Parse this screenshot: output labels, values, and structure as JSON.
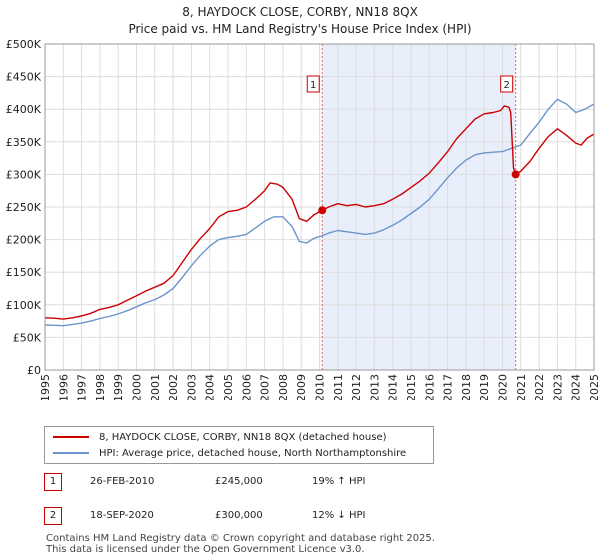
{
  "title": "8, HAYDOCK CLOSE, CORBY, NN18 8QX",
  "subtitle": "Price paid vs. HM Land Registry's House Price Index (HPI)",
  "colors": {
    "property": "#cc0000",
    "hpi": "#6b95cc",
    "shade": "#e8eefa",
    "grid": "#dddddd",
    "vline": "#dd6666"
  },
  "chart_data": {
    "type": "line",
    "x_range": [
      1995,
      2025
    ],
    "ylim": [
      0,
      500000
    ],
    "yticks": [
      0,
      50000,
      100000,
      150000,
      200000,
      250000,
      300000,
      350000,
      400000,
      450000,
      500000
    ],
    "ytick_labels": [
      "£0",
      "£50K",
      "£100K",
      "£150K",
      "£200K",
      "£250K",
      "£300K",
      "£350K",
      "£400K",
      "£450K",
      "£500K"
    ],
    "xticks": [
      1995,
      1996,
      1997,
      1998,
      1999,
      2000,
      2001,
      2002,
      2003,
      2004,
      2005,
      2006,
      2007,
      2008,
      2009,
      2010,
      2011,
      2012,
      2013,
      2014,
      2015,
      2016,
      2017,
      2018,
      2019,
      2020,
      2021,
      2022,
      2023,
      2024,
      2025
    ],
    "xtick_labels": [
      "1995",
      "1996",
      "1997",
      "1998",
      "1999",
      "2000",
      "2001",
      "2002",
      "2003",
      "2004",
      "2005",
      "2006",
      "2007",
      "2008",
      "2009",
      "2010",
      "2011",
      "2012",
      "2013",
      "2014",
      "2015",
      "2016",
      "2017",
      "2018",
      "2019",
      "2020",
      "2021",
      "2022",
      "2023",
      "2024",
      "2025"
    ],
    "shaded_range": [
      2010.15,
      2020.72
    ],
    "series": [
      {
        "name": "8, HAYDOCK CLOSE, CORBY, NN18 8QX (detached house)",
        "color": "#cc0000",
        "points": [
          [
            1995.0,
            80000
          ],
          [
            1995.5,
            79500
          ],
          [
            1996.0,
            78000
          ],
          [
            1996.5,
            80000
          ],
          [
            1997.0,
            83000
          ],
          [
            1997.5,
            87000
          ],
          [
            1998.0,
            93000
          ],
          [
            1998.5,
            96000
          ],
          [
            1999.0,
            100000
          ],
          [
            1999.5,
            107000
          ],
          [
            2000.0,
            114000
          ],
          [
            2000.5,
            121000
          ],
          [
            2001.0,
            127000
          ],
          [
            2001.5,
            133000
          ],
          [
            2002.0,
            145000
          ],
          [
            2002.5,
            165000
          ],
          [
            2003.0,
            185000
          ],
          [
            2003.5,
            202000
          ],
          [
            2004.0,
            217000
          ],
          [
            2004.5,
            235000
          ],
          [
            2005.0,
            243000
          ],
          [
            2005.5,
            245000
          ],
          [
            2006.0,
            250000
          ],
          [
            2006.5,
            262000
          ],
          [
            2007.0,
            275000
          ],
          [
            2007.3,
            287000
          ],
          [
            2007.7,
            285000
          ],
          [
            2008.0,
            280000
          ],
          [
            2008.5,
            262000
          ],
          [
            2008.9,
            232000
          ],
          [
            2009.3,
            228000
          ],
          [
            2009.7,
            238000
          ],
          [
            2010.15,
            245000
          ],
          [
            2010.5,
            250000
          ],
          [
            2011.0,
            255000
          ],
          [
            2011.5,
            252000
          ],
          [
            2012.0,
            254000
          ],
          [
            2012.5,
            250000
          ],
          [
            2013.0,
            252000
          ],
          [
            2013.5,
            255000
          ],
          [
            2014.0,
            262000
          ],
          [
            2014.5,
            270000
          ],
          [
            2015.0,
            280000
          ],
          [
            2015.5,
            290000
          ],
          [
            2016.0,
            302000
          ],
          [
            2016.5,
            318000
          ],
          [
            2017.0,
            335000
          ],
          [
            2017.5,
            355000
          ],
          [
            2018.0,
            370000
          ],
          [
            2018.5,
            385000
          ],
          [
            2019.0,
            393000
          ],
          [
            2019.5,
            395000
          ],
          [
            2019.9,
            398000
          ],
          [
            2020.1,
            405000
          ],
          [
            2020.35,
            403000
          ],
          [
            2020.45,
            395000
          ],
          [
            2020.6,
            310000
          ],
          [
            2020.72,
            300000
          ],
          [
            2021.0,
            305000
          ],
          [
            2021.5,
            320000
          ],
          [
            2022.0,
            340000
          ],
          [
            2022.5,
            358000
          ],
          [
            2023.0,
            370000
          ],
          [
            2023.5,
            360000
          ],
          [
            2024.0,
            348000
          ],
          [
            2024.3,
            345000
          ],
          [
            2024.6,
            355000
          ],
          [
            2025.0,
            362000
          ]
        ]
      },
      {
        "name": "HPI: Average price, detached house, North Northamptonshire",
        "color": "#6b95cc",
        "points": [
          [
            1995.0,
            69000
          ],
          [
            1995.5,
            68500
          ],
          [
            1996.0,
            68000
          ],
          [
            1996.5,
            70000
          ],
          [
            1997.0,
            72000
          ],
          [
            1997.5,
            75000
          ],
          [
            1998.0,
            79000
          ],
          [
            1998.5,
            82000
          ],
          [
            1999.0,
            86000
          ],
          [
            1999.5,
            91000
          ],
          [
            2000.0,
            97000
          ],
          [
            2000.5,
            103000
          ],
          [
            2001.0,
            108000
          ],
          [
            2001.5,
            115000
          ],
          [
            2002.0,
            125000
          ],
          [
            2002.5,
            142000
          ],
          [
            2003.0,
            160000
          ],
          [
            2003.5,
            176000
          ],
          [
            2004.0,
            190000
          ],
          [
            2004.5,
            200000
          ],
          [
            2005.0,
            203000
          ],
          [
            2005.5,
            205000
          ],
          [
            2006.0,
            208000
          ],
          [
            2006.5,
            218000
          ],
          [
            2007.0,
            228000
          ],
          [
            2007.5,
            235000
          ],
          [
            2008.0,
            235000
          ],
          [
            2008.5,
            220000
          ],
          [
            2008.9,
            197000
          ],
          [
            2009.3,
            195000
          ],
          [
            2009.7,
            202000
          ],
          [
            2010.15,
            206000
          ],
          [
            2010.5,
            210000
          ],
          [
            2011.0,
            214000
          ],
          [
            2011.5,
            212000
          ],
          [
            2012.0,
            210000
          ],
          [
            2012.5,
            208000
          ],
          [
            2013.0,
            210000
          ],
          [
            2013.5,
            215000
          ],
          [
            2014.0,
            222000
          ],
          [
            2014.5,
            230000
          ],
          [
            2015.0,
            240000
          ],
          [
            2015.5,
            250000
          ],
          [
            2016.0,
            262000
          ],
          [
            2016.5,
            278000
          ],
          [
            2017.0,
            295000
          ],
          [
            2017.5,
            310000
          ],
          [
            2018.0,
            322000
          ],
          [
            2018.5,
            330000
          ],
          [
            2019.0,
            333000
          ],
          [
            2019.5,
            334000
          ],
          [
            2020.0,
            335000
          ],
          [
            2020.5,
            340000
          ],
          [
            2021.0,
            345000
          ],
          [
            2021.5,
            363000
          ],
          [
            2022.0,
            380000
          ],
          [
            2022.5,
            400000
          ],
          [
            2023.0,
            415000
          ],
          [
            2023.5,
            408000
          ],
          [
            2024.0,
            395000
          ],
          [
            2024.5,
            400000
          ],
          [
            2025.0,
            408000
          ]
        ]
      }
    ],
    "markers": [
      {
        "label": "1",
        "x": 2010.15,
        "y": 245000
      },
      {
        "label": "2",
        "x": 2020.72,
        "y": 300000
      }
    ]
  },
  "legend": {
    "property_label": "8, HAYDOCK CLOSE, CORBY, NN18 8QX (detached house)",
    "hpi_label": "HPI: Average price, detached house, North Northamptonshire"
  },
  "transactions": [
    {
      "num": "1",
      "date": "26-FEB-2010",
      "price": "£245,000",
      "change": "19% ↑ HPI"
    },
    {
      "num": "2",
      "date": "18-SEP-2020",
      "price": "£300,000",
      "change": "12% ↓ HPI"
    }
  ],
  "footer": {
    "line1": "Contains HM Land Registry data © Crown copyright and database right 2025.",
    "line2": "This data is licensed under the Open Government Licence v3.0."
  }
}
